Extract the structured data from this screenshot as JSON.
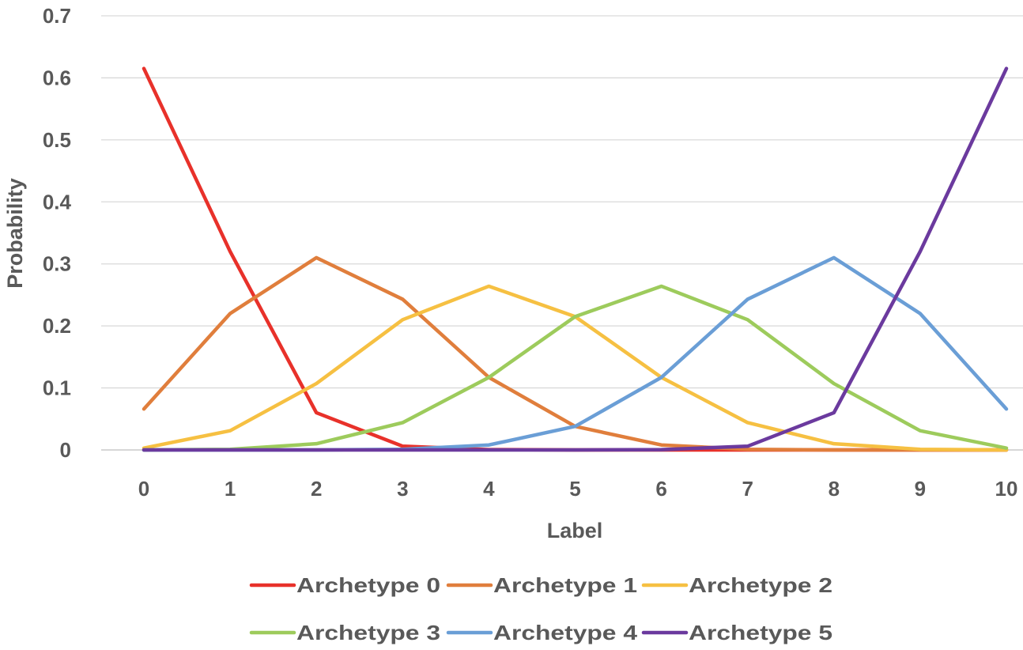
{
  "chart_data": {
    "type": "line",
    "title": "",
    "xlabel": "Label",
    "ylabel": "Probability",
    "x": [
      0,
      1,
      2,
      3,
      4,
      5,
      6,
      7,
      8,
      9,
      10
    ],
    "ylim": [
      0,
      0.7
    ],
    "yticks": [
      0,
      0.1,
      0.2,
      0.3,
      0.4,
      0.5,
      0.6,
      0.7
    ],
    "ytick_labels": [
      "0",
      "0.1",
      "0.2",
      "0.3",
      "0.4",
      "0.5",
      "0.6",
      "0.7"
    ],
    "xtick_labels": [
      "0",
      "1",
      "2",
      "3",
      "4",
      "5",
      "6",
      "7",
      "8",
      "9",
      "10"
    ],
    "grid": "horizontal",
    "legend_placement": "bottom",
    "series": [
      {
        "name": "Archetype 0",
        "color": "#E8312A",
        "values": [
          0.615,
          0.32,
          0.06,
          0.006,
          0.0005,
          0,
          0,
          0,
          0,
          0,
          0
        ]
      },
      {
        "name": "Archetype 1",
        "color": "#E07E3C",
        "values": [
          0.066,
          0.22,
          0.31,
          0.243,
          0.117,
          0.038,
          0.008,
          0.001,
          0,
          0,
          0
        ]
      },
      {
        "name": "Archetype 2",
        "color": "#F6C042",
        "values": [
          0.003,
          0.031,
          0.107,
          0.21,
          0.264,
          0.215,
          0.117,
          0.044,
          0.01,
          0.001,
          0
        ]
      },
      {
        "name": "Archetype 3",
        "color": "#9DCB5C",
        "values": [
          0,
          0.001,
          0.01,
          0.044,
          0.117,
          0.215,
          0.264,
          0.21,
          0.107,
          0.031,
          0.003
        ]
      },
      {
        "name": "Archetype 4",
        "color": "#6A9ED6",
        "values": [
          0,
          0,
          0,
          0.001,
          0.008,
          0.038,
          0.117,
          0.243,
          0.31,
          0.22,
          0.066
        ]
      },
      {
        "name": "Archetype 5",
        "color": "#6B3A9E",
        "values": [
          0,
          0,
          0,
          0,
          0,
          0,
          0.0005,
          0.006,
          0.06,
          0.32,
          0.615
        ]
      }
    ]
  }
}
